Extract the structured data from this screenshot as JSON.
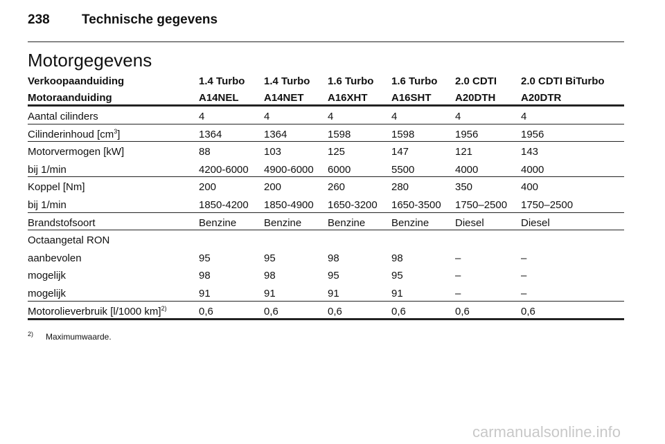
{
  "header": {
    "page_number": "238",
    "title": "Technische gegevens"
  },
  "section_title": "Motorgegevens",
  "table": {
    "header_rows": [
      [
        "Verkoopaanduiding",
        "1.4 Turbo",
        "1.4 Turbo",
        "1.6 Turbo",
        "1.6 Turbo",
        "2.0 CDTI",
        "2.0 CDTI BiTurbo"
      ],
      [
        "Motoraanduiding",
        "A14NEL",
        "A14NET",
        "A16XHT",
        "A16SHT",
        "A20DTH",
        "A20DTR"
      ]
    ],
    "groups": [
      [
        [
          "Aantal cilinders",
          "4",
          "4",
          "4",
          "4",
          "4",
          "4"
        ]
      ],
      [
        [
          {
            "text": "Cilinderinhoud [cm",
            "sup": "3",
            "tail": "]"
          },
          "1364",
          "1364",
          "1598",
          "1598",
          "1956",
          "1956"
        ]
      ],
      [
        [
          "Motorvermogen [kW]",
          "88",
          "103",
          "125",
          "147",
          "121",
          "143"
        ],
        [
          "bij 1/min",
          "4200-6000",
          "4900-6000",
          "6000",
          "5500",
          "4000",
          "4000"
        ]
      ],
      [
        [
          "Koppel [Nm]",
          "200",
          "200",
          "260",
          "280",
          "350",
          "400"
        ],
        [
          "bij 1/min",
          "1850-4200",
          "1850-4900",
          "1650-3200",
          "1650-3500",
          "1750–2500",
          "1750–2500"
        ]
      ],
      [
        [
          "Brandstofsoort",
          "Benzine",
          "Benzine",
          "Benzine",
          "Benzine",
          "Diesel",
          "Diesel"
        ]
      ],
      [
        [
          "Octaangetal RON"
        ],
        [
          "aanbevolen",
          "95",
          "95",
          "98",
          "98",
          "–",
          "–"
        ],
        [
          "mogelijk",
          "98",
          "98",
          "95",
          "95",
          "–",
          "–"
        ],
        [
          "mogelijk",
          "91",
          "91",
          "91",
          "91",
          "–",
          "–"
        ]
      ],
      [
        [
          {
            "text": "Motorolieverbruik [l/1000 km]",
            "sup": "2)"
          },
          "0,6",
          "0,6",
          "0,6",
          "0,6",
          "0,6",
          "0,6"
        ]
      ]
    ]
  },
  "footnote": {
    "marker": "2)",
    "text": "Maximumwaarde."
  },
  "watermark": "carmanualsonline.info"
}
